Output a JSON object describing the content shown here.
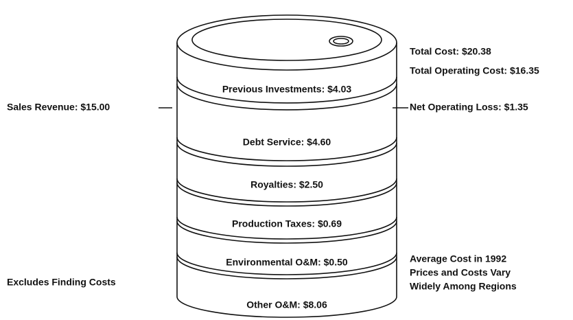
{
  "segments": [
    "Previous Investments: $4.03",
    "Debt Service: $4.60",
    "Royalties: $2.50",
    "Production Taxes: $0.69",
    "Environmental O&M: $0.50",
    "Other O&M: $8.06"
  ],
  "left_labels": {
    "sales_revenue": "Sales Revenue: $15.00",
    "excludes": "Excludes Finding Costs"
  },
  "right_labels": {
    "total_cost": "Total Cost: $20.38",
    "total_operating_cost": "Total Operating Cost: $16.35",
    "net_operating_loss": "Net Operating Loss: $1.35"
  },
  "notes": [
    "Average Cost in 1992",
    "Prices and Costs Vary",
    "Widely Among Regions"
  ]
}
